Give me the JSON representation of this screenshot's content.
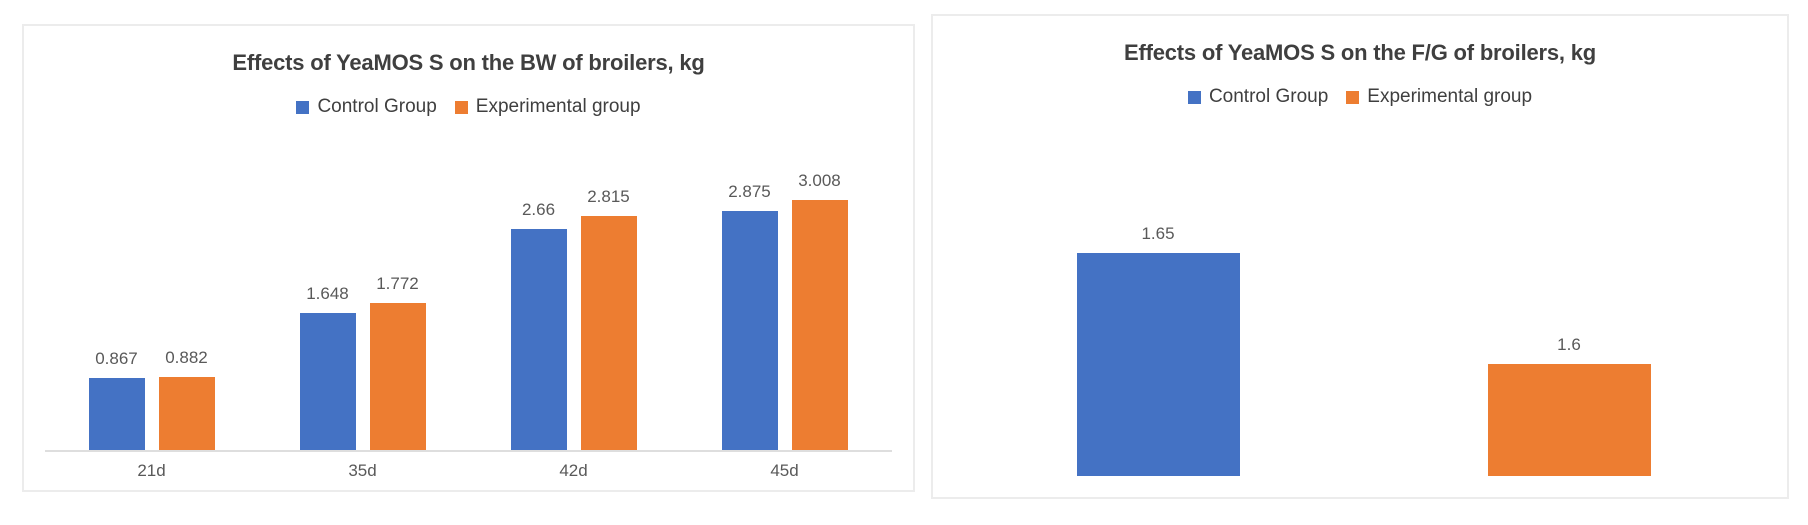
{
  "chart_data": [
    {
      "type": "bar",
      "title": "Effects of YeaMOS S on the BW of broilers, kg",
      "categories": [
        "21d",
        "35d",
        "42d",
        "45d"
      ],
      "series": [
        {
          "name": "Control Group",
          "color": "#4472C4",
          "values": [
            0.867,
            1.648,
            2.66,
            2.875
          ]
        },
        {
          "name": "Experimental group",
          "color": "#ED7D31",
          "values": [
            0.882,
            1.772,
            2.815,
            3.008
          ]
        }
      ],
      "data_labels": true,
      "legend_position": "top",
      "grid": false,
      "ylim": [
        0,
        3.2
      ],
      "x_axis_line": true
    },
    {
      "type": "bar",
      "title": "Effects of YeaMOS S on the F/G of broilers, kg",
      "categories": [
        "",
        ""
      ],
      "series": [
        {
          "name": "Control Group",
          "color": "#4472C4",
          "values": [
            1.65,
            null
          ]
        },
        {
          "name": "Experimental group",
          "color": "#ED7D31",
          "values": [
            null,
            1.6
          ]
        }
      ],
      "data_labels": true,
      "legend_position": "top",
      "grid": false,
      "ylim": [
        1.55,
        1.66
      ],
      "x_axis_line": false
    }
  ],
  "styles": {
    "control_color": "#4472C4",
    "experimental_color": "#ED7D31",
    "title_color": "#3F3F3F",
    "label_color": "#595959",
    "axis_line_color": "#DEDEDE",
    "panel_border_color": "#ECECEC",
    "background": "#FFFFFF"
  }
}
